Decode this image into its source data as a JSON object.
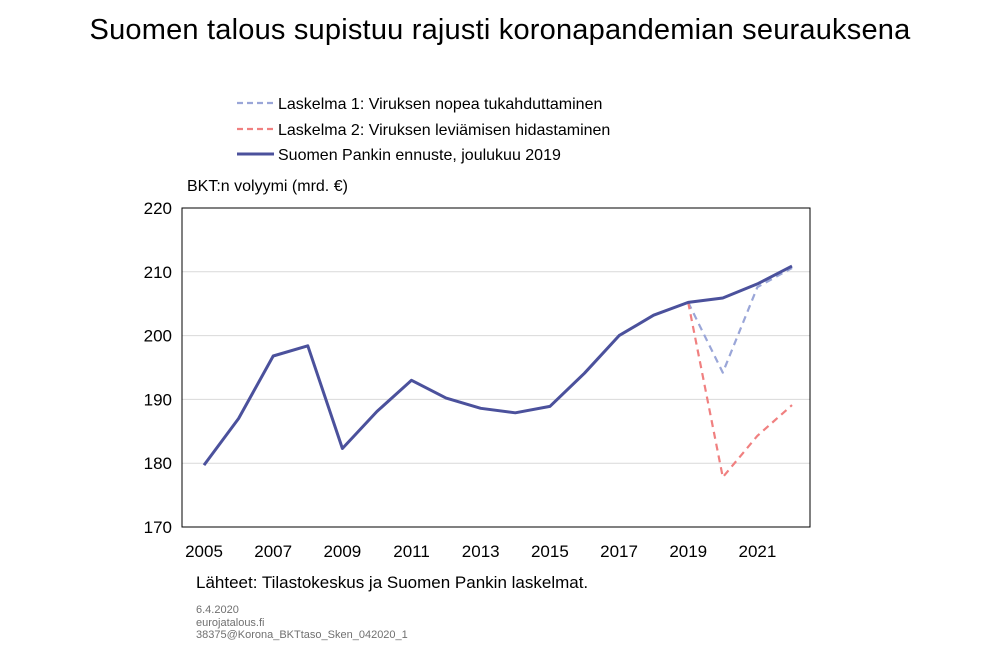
{
  "chart_data": {
    "type": "line",
    "title": "Suomen talous supistuu rajusti koronapandemian seurauksena",
    "ylabel": "BKT:n volyymi (mrd. €)",
    "xlabel": "",
    "ylim": [
      170,
      220
    ],
    "xlim": [
      2005,
      2022
    ],
    "yticks": [
      170,
      180,
      190,
      200,
      210,
      220
    ],
    "xticks": [
      2005,
      2007,
      2009,
      2011,
      2013,
      2015,
      2017,
      2019,
      2021
    ],
    "grid": true,
    "legend_position": "top-left",
    "series": [
      {
        "name": "Laskelma 1: Viruksen nopea tukahduttaminen",
        "style": "dashed",
        "color": "#9aa6d8",
        "x": [
          2019,
          2020,
          2021,
          2022
        ],
        "values": [
          205.2,
          194.2,
          207.6,
          210.6
        ]
      },
      {
        "name": "Laskelma 2: Viruksen leviämisen hidastaminen",
        "style": "dashed",
        "color": "#f08080",
        "x": [
          2019,
          2020,
          2021,
          2022
        ],
        "values": [
          205.2,
          177.8,
          184.3,
          189.1
        ]
      },
      {
        "name": "Suomen Pankin ennuste, joulukuu 2019",
        "style": "solid",
        "color": "#4b519c",
        "x": [
          2005,
          2006,
          2007,
          2008,
          2009,
          2010,
          2011,
          2012,
          2013,
          2014,
          2015,
          2016,
          2017,
          2018,
          2019,
          2020,
          2021,
          2022
        ],
        "values": [
          179.7,
          187.0,
          196.8,
          198.4,
          182.3,
          188.1,
          193.0,
          190.2,
          188.6,
          187.9,
          188.9,
          194.1,
          200.0,
          203.2,
          205.2,
          205.9,
          208.1,
          210.9
        ]
      }
    ]
  },
  "source_note": "Lähteet: Tilastokeskus ja Suomen Pankin laskelmat.",
  "footer": {
    "date": "6.4.2020",
    "site": "eurojatalous.fi",
    "code": "38375@Korona_BKTtaso_Sken_042020_1"
  }
}
